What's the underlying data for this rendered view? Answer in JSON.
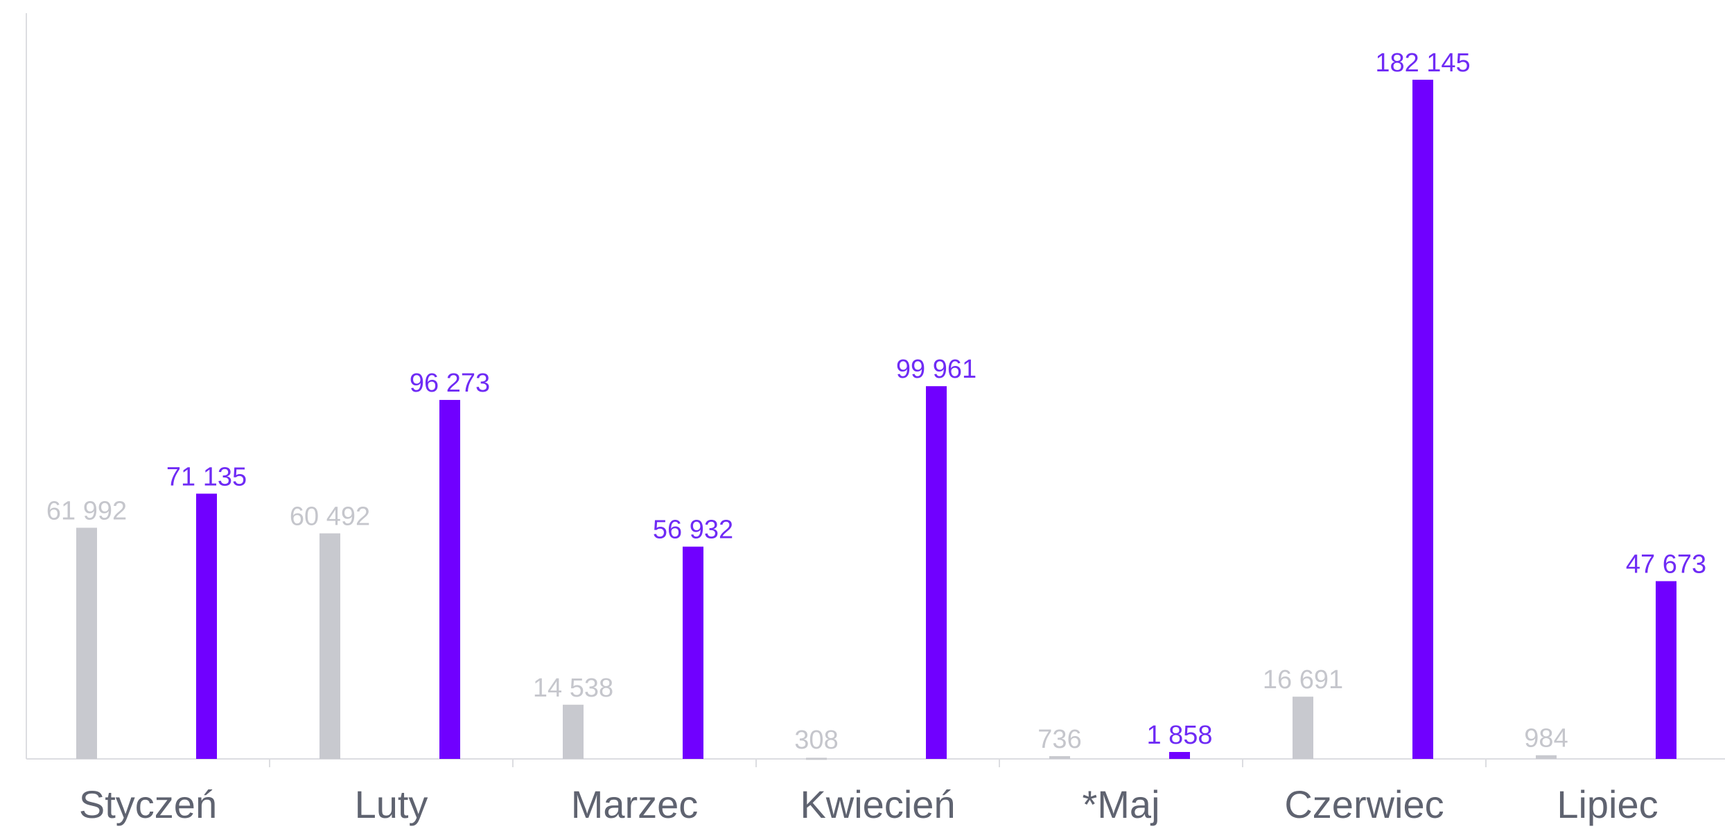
{
  "chart_data": {
    "type": "bar",
    "categories": [
      "Styczeń",
      "Luty",
      "Marzec",
      "Kwiecień",
      "*Maj",
      "Czerwiec",
      "Lipiec"
    ],
    "series": [
      {
        "color": "#c8c9cf",
        "values": [
          61992,
          60492,
          14538,
          308,
          736,
          16691,
          984
        ],
        "value_labels": [
          "61 992",
          "60 492",
          "14 538",
          "308",
          "736",
          "16 691",
          "984"
        ]
      },
      {
        "color": "#7000ff",
        "values": [
          71135,
          96273,
          56932,
          99961,
          1858,
          182145,
          47673
        ],
        "value_labels": [
          "71 135",
          "96 273",
          "56 932",
          "99 961",
          "1 858",
          "182 145",
          "47 673"
        ]
      }
    ],
    "ylim": [
      0,
      200000
    ]
  }
}
